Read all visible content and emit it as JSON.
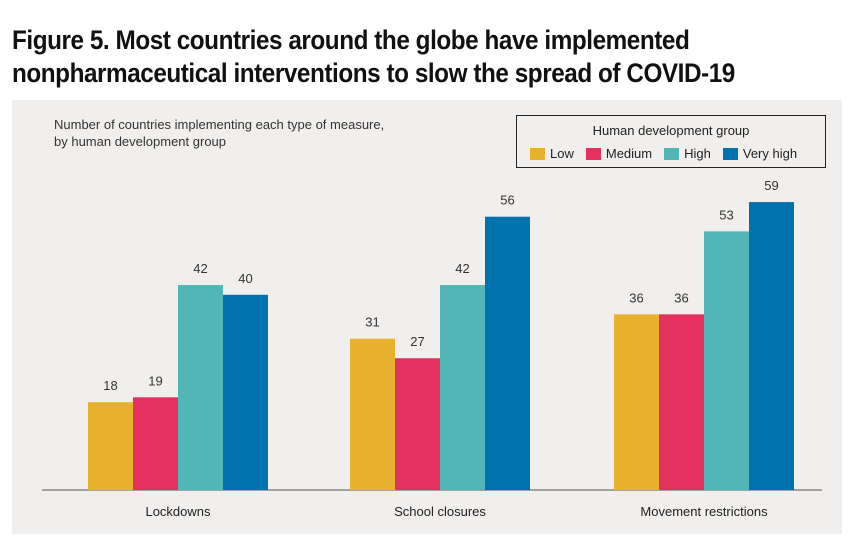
{
  "figure": {
    "title_line1": "Figure 5. Most countries around the globe have implemented",
    "title_line2": "nonpharmaceutical interventions to slow the spread of COVID-19"
  },
  "chart_data": {
    "type": "bar",
    "subtitle_line1": "Number of countries implementing each type of measure,",
    "subtitle_line2": "by human development group",
    "legend_title": "Human development group",
    "categories": [
      "Lockdowns",
      "School closures",
      "Movement restrictions"
    ],
    "series": [
      {
        "name": "Low",
        "color": "#e8b22e",
        "values": [
          18,
          31,
          36
        ]
      },
      {
        "name": "Medium",
        "color": "#e33160",
        "values": [
          19,
          27,
          36
        ]
      },
      {
        "name": "High",
        "color": "#52b5b6",
        "values": [
          42,
          42,
          53
        ]
      },
      {
        "name": "Very high",
        "color": "#0072ae",
        "values": [
          40,
          56,
          59
        ]
      }
    ],
    "ylim": [
      0,
      60
    ],
    "legend_position": "top-right",
    "grid": false,
    "xlabel": "",
    "ylabel": ""
  }
}
